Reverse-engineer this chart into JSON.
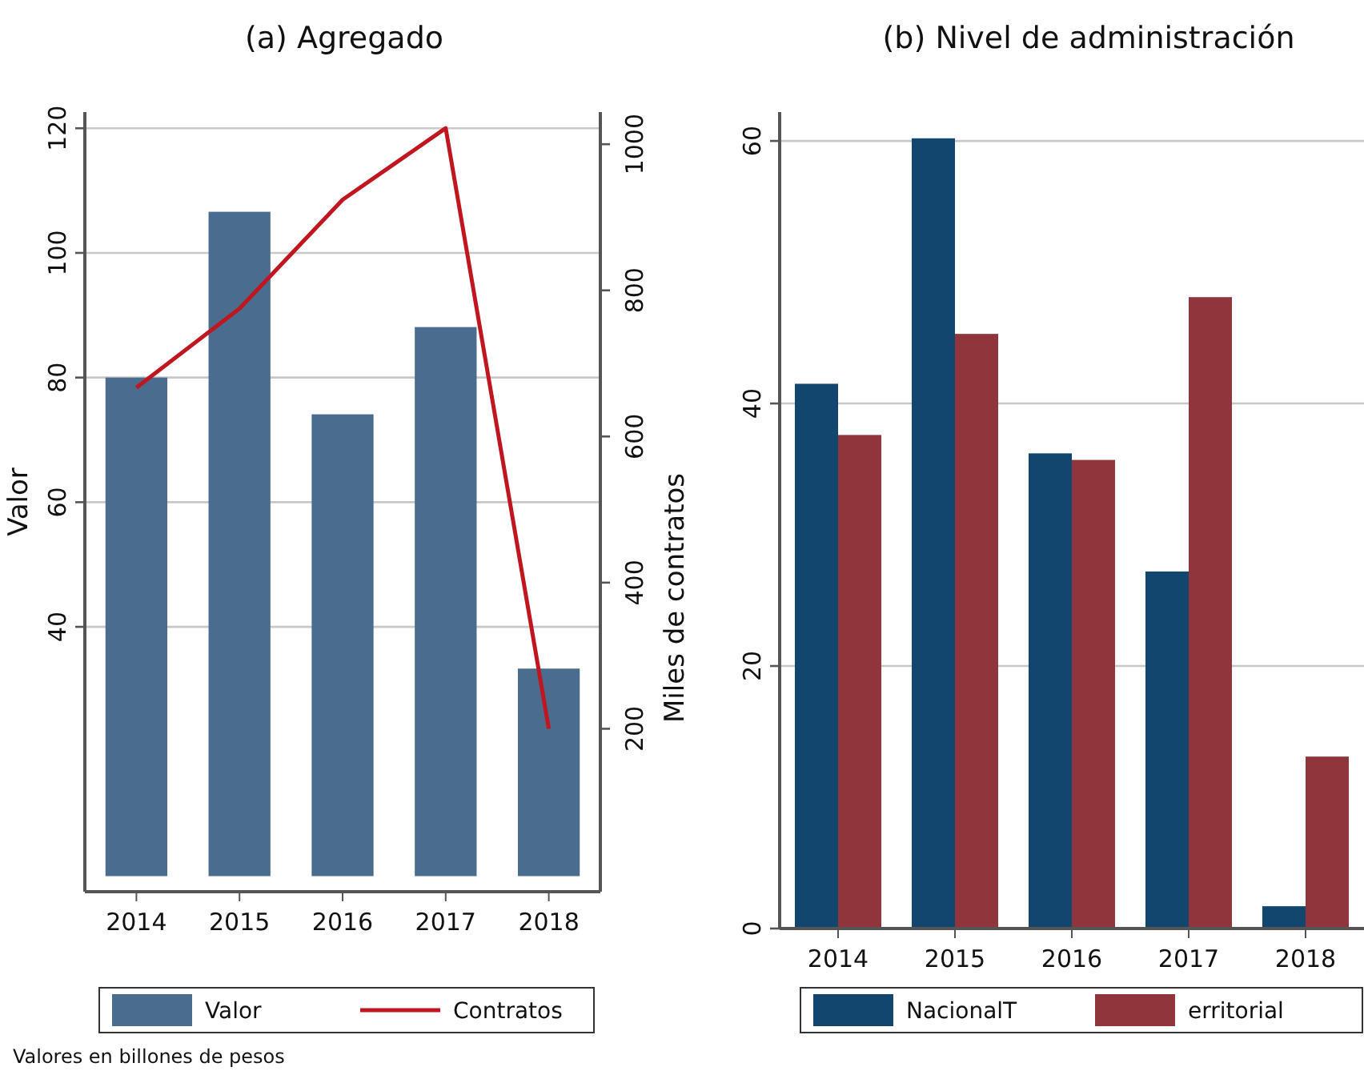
{
  "chart_data": [
    {
      "type": "bar",
      "title": "(a) Agregado",
      "ylabel": "Valor",
      "y2label": "Miles de contratos",
      "categories": [
        "2014",
        "2015",
        "2016",
        "2017",
        "2018"
      ],
      "series": [
        {
          "name": "Valor",
          "color": "#4a6d8f",
          "values": [
            80,
            106.6,
            74.1,
            88.1,
            33.3
          ]
        },
        {
          "name": "Contratos",
          "type": "line",
          "axis": "y2",
          "color": "#c0161f",
          "values": [
            667,
            775,
            924,
            1022,
            200
          ]
        }
      ],
      "ylim": [
        -2.5,
        122.6
      ],
      "yticks": [
        40,
        60,
        80,
        100,
        120
      ],
      "y2lim": [
        -23,
        1044
      ],
      "y2ticks": [
        200,
        400,
        600,
        800,
        1000
      ],
      "grid": "y",
      "legend": "bottom",
      "marker": "none",
      "annotations": [
        "Valores en billones de pesos"
      ]
    },
    {
      "type": "bar",
      "title": "(b) Nivel de administración",
      "categories": [
        "2014",
        "2015",
        "2016",
        "2017",
        "2018"
      ],
      "series": [
        {
          "name": "NacionalT",
          "color": "#12466e",
          "values": [
            41.5,
            60.2,
            36.2,
            27.2,
            1.7
          ]
        },
        {
          "name": "erritorial",
          "color": "#8f353b",
          "values": [
            37.6,
            45.3,
            35.7,
            48.1,
            13.1
          ]
        }
      ],
      "ylim": [
        0,
        62.2
      ],
      "yticks": [
        0,
        20,
        40,
        60
      ],
      "grid": "y",
      "legend": "bottom"
    }
  ]
}
